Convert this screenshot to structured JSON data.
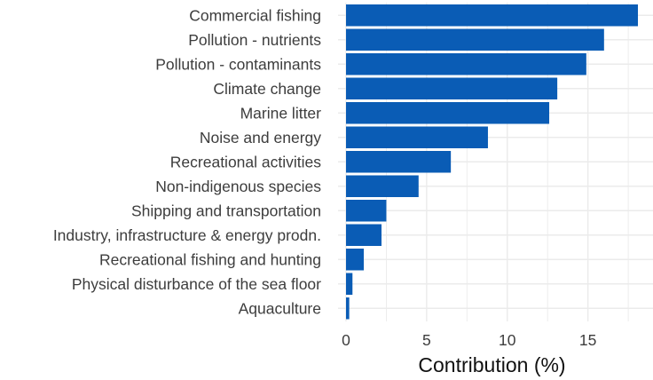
{
  "chart_data": {
    "type": "bar",
    "orientation": "horizontal",
    "categories": [
      "Commercial fishing",
      "Pollution - nutrients",
      "Pollution - contaminants",
      "Climate change",
      "Marine litter",
      "Noise and energy",
      "Recreational activities",
      "Non-indigenous species",
      "Shipping and transportation",
      "Industry, infrastructure & energy prodn.",
      "Recreational fishing and hunting",
      "Physical disturbance of the sea floor",
      "Aquaculture"
    ],
    "values": [
      18.1,
      16.0,
      14.9,
      13.1,
      12.6,
      8.8,
      6.5,
      4.5,
      2.5,
      2.2,
      1.1,
      0.4,
      0.2
    ],
    "xlabel": "Contribution (%)",
    "ylabel": "",
    "title": "",
    "xlim": [
      0,
      18.5
    ],
    "xticks": [
      "0",
      "5",
      "10",
      "15"
    ],
    "grid": true,
    "bar_color": "#0a5cb5",
    "grid_color": "#ebebeb"
  }
}
